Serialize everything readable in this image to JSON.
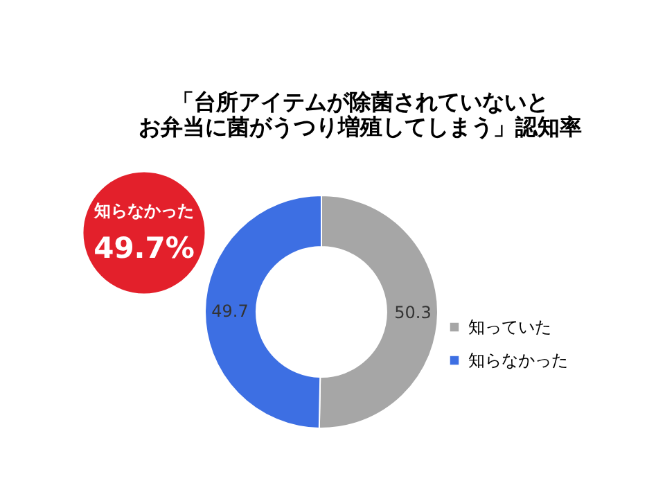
{
  "chart_data": {
    "type": "donut",
    "title": [
      "「台所アイテムが除菌されていないと",
      "お弁当に菌がうつり増殖してしまう」認知率"
    ],
    "categories": [
      "知っていた",
      "知らなかった"
    ],
    "values": [
      50.3,
      49.7
    ],
    "colors": [
      "#a6a6a6",
      "#3d6fe3"
    ],
    "data_labels": true,
    "legend": "right",
    "annotations": [
      "知らなかった\n49.7%"
    ]
  }
}
